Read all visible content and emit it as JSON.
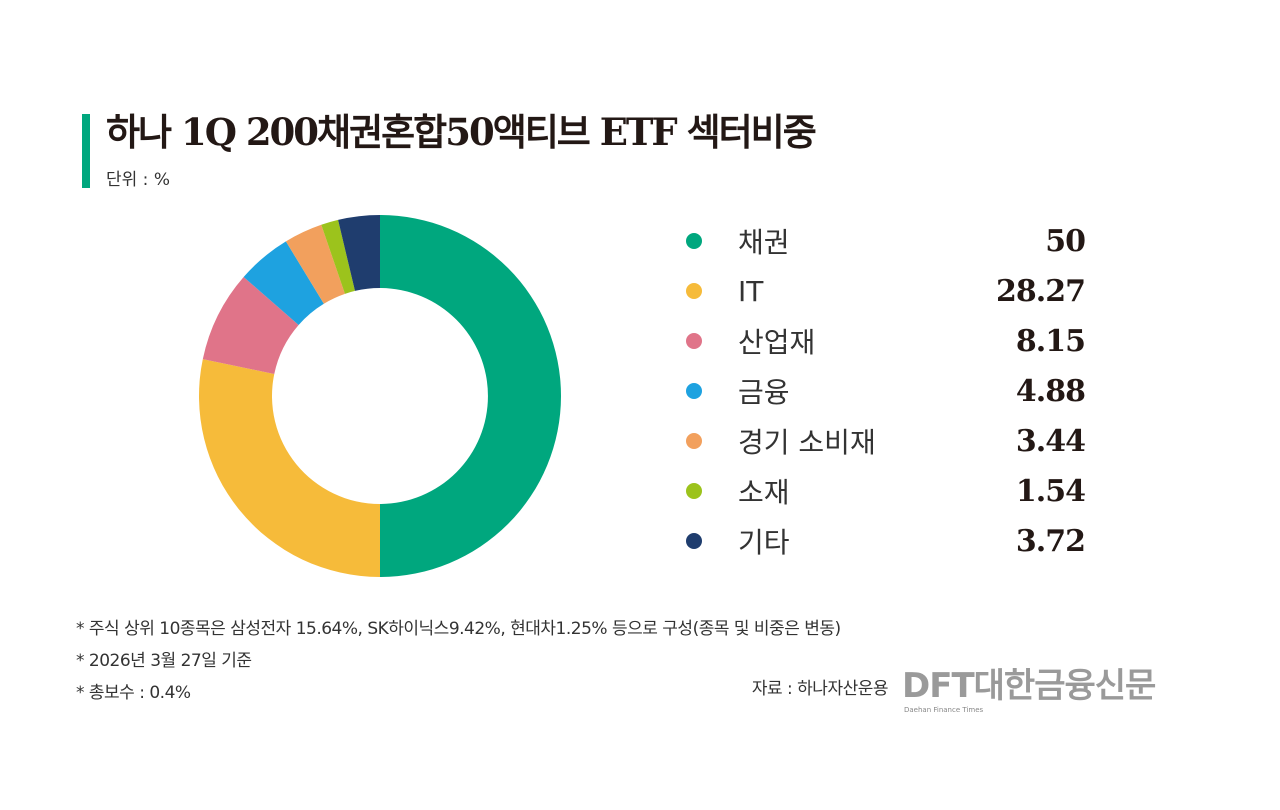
{
  "chart_data": {
    "type": "pie",
    "donut": true,
    "title": "하나 1Q 200채권혼합50액티브 ETF 섹터비중",
    "unit_label": "단위 : %",
    "categories": [
      "채권",
      "IT",
      "산업재",
      "금융",
      "경기 소비재",
      "소재",
      "기타"
    ],
    "values": [
      50,
      28.27,
      8.15,
      4.88,
      3.44,
      1.54,
      3.72
    ],
    "value_labels": [
      "50",
      "28.27",
      "8.15",
      "4.88",
      "3.44",
      "1.54",
      "3.72"
    ],
    "colors": [
      "#00a77e",
      "#f6bb3a",
      "#e07489",
      "#1ea2e0",
      "#f2a05d",
      "#9cc31c",
      "#1f3d6e"
    ],
    "legend_position": "right",
    "start_angle": "top",
    "direction": "clockwise"
  },
  "accent_color": "#00a77e",
  "notes": [
    "* 주식 상위 10종목은 삼성전자 15.64%, SK하이닉스9.42%, 현대차1.25% 등으로 구성(종목 및 비중은 변동)",
    "* 2026년 3월 27일 기준",
    "* 총보수 : 0.4%"
  ],
  "source": "자료 : 하나자산운용",
  "logo": {
    "main": "DFT대한금융신문",
    "sub": "Daehan Finance Times"
  }
}
